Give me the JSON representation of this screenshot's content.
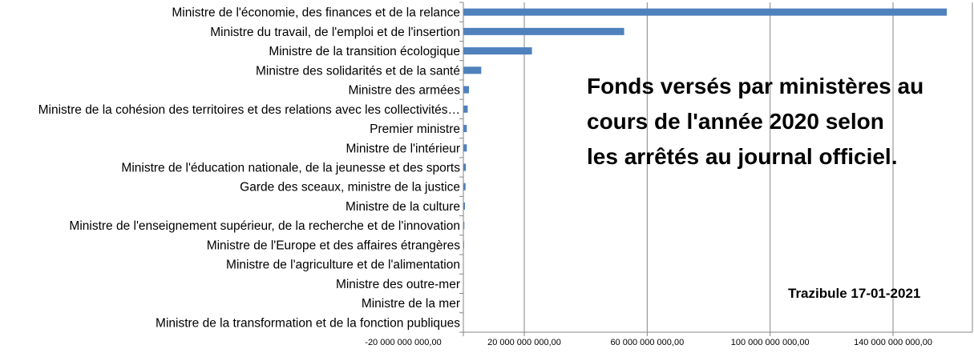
{
  "chart_data": {
    "type": "bar",
    "orientation": "horizontal",
    "title_lines": [
      "Fonds versés par ministères au",
      "cours de l'année 2020 selon",
      "les arrêtés au journal officiel."
    ],
    "annotation": "Trazibule 17-01-2021",
    "categories": [
      "Ministre de l'économie, des finances et de la relance",
      "Ministre du travail, de l'emploi et de l'insertion",
      "Ministre de la transition écologique",
      "Ministre des solidarités et de la santé",
      "Ministre des armées",
      "Ministre de la cohésion des territoires et des relations avec les collectivités…",
      "Premier ministre",
      "Ministre de l'intérieur",
      "Ministre de l'éducation nationale, de la jeunesse et des sports",
      "Garde des sceaux, ministre de la justice",
      "Ministre de la culture",
      "Ministre de l'enseignement supérieur, de la recherche et de l'innovation",
      "Ministre de l'Europe et des affaires étrangères",
      "Ministre de l'agriculture et de l'alimentation",
      "Ministre des outre-mer",
      "Ministre de la mer",
      "Ministre de la transformation et de la fonction publiques"
    ],
    "values": [
      157500000000,
      52500000000,
      22500000000,
      6000000000,
      2000000000,
      1600000000,
      1300000000,
      1300000000,
      1000000000,
      900000000,
      700000000,
      500000000,
      400000000,
      300000000,
      300000000,
      200000000,
      0
    ],
    "xlim": [
      -20000000000,
      160000000000
    ],
    "tick_values": [
      -20000000000,
      20000000000,
      60000000000,
      100000000000,
      140000000000
    ],
    "tick_labels": [
      "-20 000 000 000,00",
      "20 000 000 000,00",
      "60 000 000 000,00",
      "100 000 000 000,00",
      "140 000 000 000,00"
    ],
    "grid": true,
    "colors": {
      "bar": "#4f81bd",
      "grid": "#868686",
      "axis": "#868686"
    }
  }
}
